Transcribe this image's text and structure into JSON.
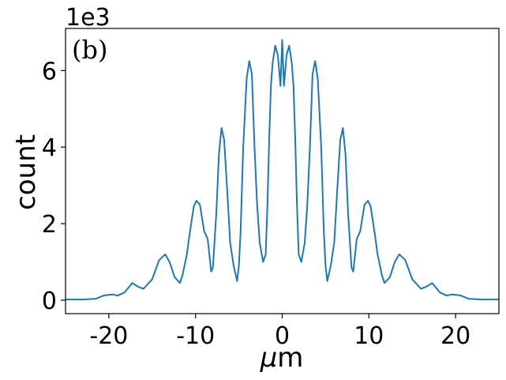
{
  "chart_data": {
    "type": "line",
    "panel_label": "(b)",
    "xlabel_prefix": "μ",
    "xlabel_suffix": "m",
    "ylabel": "count",
    "offset_text": "1e3",
    "xlim": [
      -25,
      25
    ],
    "ylim": [
      -0.35,
      7.1
    ],
    "xticks": [
      -20,
      -10,
      0,
      10,
      20
    ],
    "xtick_labels": [
      "-20",
      "-10",
      "0",
      "10",
      "20"
    ],
    "yticks": [
      0,
      2,
      4,
      6
    ],
    "ytick_labels": [
      "0",
      "2",
      "4",
      "6"
    ],
    "grid": false,
    "line_color": "#1f77b4",
    "series": [
      {
        "x": [
          -25,
          -23,
          -21.5,
          -20.5,
          -19.5,
          -19,
          -18.2,
          -17.3,
          -16.6,
          -16,
          -15,
          -14.2,
          -13.5,
          -13,
          -12.4,
          -11.8,
          -11.5,
          -11,
          -10.7,
          -10.2,
          -9.9,
          -9.5,
          -9,
          -8.6,
          -8.2,
          -8,
          -7.6,
          -7.3,
          -7,
          -6.7,
          -6.3,
          -6,
          -5.6,
          -5.2,
          -5,
          -4.8,
          -4.5,
          -4.1,
          -3.8,
          -3.5,
          -3.2,
          -2.9,
          -2.6,
          -2.2,
          -1.9,
          -1.7,
          -1.5,
          -1.3,
          -1.1,
          -0.8,
          -0.5,
          -0.2,
          0,
          0.2,
          0.5,
          0.8,
          1.1,
          1.3,
          1.5,
          1.7,
          1.9,
          2.2,
          2.6,
          2.9,
          3.2,
          3.5,
          3.8,
          4.1,
          4.5,
          4.8,
          5,
          5.2,
          5.6,
          6,
          6.3,
          6.7,
          7,
          7.3,
          7.6,
          8,
          8.2,
          8.6,
          9,
          9.5,
          9.9,
          10.2,
          10.7,
          11,
          11.5,
          11.8,
          12.4,
          13,
          13.5,
          14.2,
          15,
          16,
          16.6,
          17.3,
          18.2,
          19,
          19.5,
          20.5,
          21.5,
          23,
          25
        ],
        "y": [
          0.02,
          0.02,
          0.04,
          0.13,
          0.15,
          0.12,
          0.2,
          0.45,
          0.35,
          0.3,
          0.55,
          1.05,
          1.2,
          1.0,
          0.6,
          0.45,
          0.65,
          1.2,
          1.7,
          2.45,
          2.6,
          2.5,
          1.8,
          1.6,
          0.75,
          0.85,
          2.3,
          3.8,
          4.5,
          4.2,
          2.7,
          1.5,
          0.9,
          0.5,
          0.9,
          1.8,
          4.0,
          5.8,
          6.25,
          5.9,
          4.0,
          2.5,
          1.5,
          1.0,
          1.2,
          2.5,
          4.2,
          5.6,
          6.2,
          6.65,
          6.4,
          5.6,
          6.8,
          5.6,
          6.4,
          6.65,
          6.2,
          5.6,
          4.2,
          2.5,
          1.2,
          1.0,
          1.5,
          2.5,
          4.0,
          5.9,
          6.25,
          5.8,
          4.0,
          1.8,
          0.9,
          0.5,
          0.9,
          1.5,
          2.7,
          4.2,
          4.5,
          3.8,
          2.3,
          0.85,
          0.75,
          1.6,
          1.8,
          2.5,
          2.6,
          2.45,
          1.7,
          1.2,
          0.65,
          0.45,
          0.6,
          1.0,
          1.2,
          1.05,
          0.55,
          0.3,
          0.35,
          0.45,
          0.2,
          0.12,
          0.15,
          0.13,
          0.04,
          0.02,
          0.02
        ]
      }
    ]
  }
}
